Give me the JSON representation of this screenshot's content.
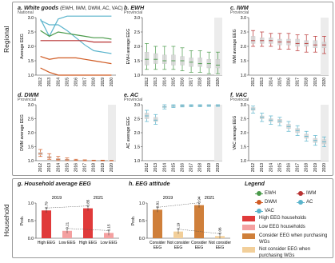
{
  "section_labels": {
    "regional": "Regional",
    "household": "Household"
  },
  "colors": {
    "EWH": "#4a9a4a",
    "IWM": "#b83232",
    "DWM": "#d05a22",
    "VAC": "#5ab4cc",
    "AC": "#5ab4cc",
    "high_eeg": "#e03a3a",
    "low_eeg": "#f4a0a0",
    "consider": "#cf7f3a",
    "not_consider": "#f2cf9a"
  },
  "legend": {
    "title": "Legend",
    "appliances": [
      {
        "name": "EWH",
        "color": "#4a9a4a"
      },
      {
        "name": "IWM",
        "color": "#b83232"
      },
      {
        "name": "DWM",
        "color": "#d05a22"
      },
      {
        "name": "AC",
        "color": "#5ab4cc"
      },
      {
        "name": "VAC",
        "color": "#5ab4cc"
      }
    ],
    "bars": [
      {
        "label": "High EEG households",
        "color": "#e03a3a"
      },
      {
        "label": "Low EEG households",
        "color": "#f4a0a0"
      },
      {
        "label": "Consider EEG when purchasing WGs",
        "color": "#cf7f3a"
      },
      {
        "label": "Not consider EEG when purchasing WGs",
        "color": "#f2cf9a"
      }
    ]
  },
  "chart_data": [
    {
      "id": "a",
      "type": "line",
      "title_letter": "a.",
      "title": "White goods",
      "title_sub": "(EWH, IWM, DWM, AC, VAC)",
      "scope": "National",
      "ylabel": "Average EEG",
      "ylim": [
        1.0,
        3.0
      ],
      "yticks": [
        "1.0",
        "1.5",
        "2.0",
        "2.5",
        "3.0"
      ],
      "x": [
        "2012",
        "2013",
        "2014",
        "2015",
        "2016",
        "2017",
        "2018",
        "2019",
        "2020"
      ],
      "series": [
        {
          "key": "VAC",
          "values": [
            2.95,
            2.35,
            2.95,
            3.05,
            3.05,
            3.05,
            3.05,
            3.05,
            3.05
          ]
        },
        {
          "key": "AC",
          "values": [
            2.9,
            2.75,
            2.75,
            2.55,
            2.3,
            2.05,
            1.85,
            1.8,
            1.75
          ]
        },
        {
          "key": "EWH",
          "values": [
            2.55,
            2.35,
            2.5,
            2.45,
            2.4,
            2.35,
            2.3,
            2.3,
            2.25
          ]
        },
        {
          "key": "IWM",
          "values": [
            2.2,
            2.2,
            2.2,
            2.2,
            2.2,
            2.2,
            2.15,
            2.15,
            2.15
          ]
        },
        {
          "key": "DWM",
          "values": [
            1.65,
            1.55,
            1.6,
            1.6,
            1.6,
            1.55,
            1.5,
            1.45,
            1.4
          ]
        },
        {
          "key": "DWM2",
          "color": "#d05a22",
          "values": [
            1.25,
            1.1,
            1.0,
            1.0,
            1.0,
            1.0,
            1.0,
            1.0,
            1.0
          ]
        }
      ]
    },
    {
      "id": "b",
      "type": "box",
      "title_letter": "b.",
      "title": "EWH",
      "scope": "Provincial",
      "ylabel": "EWH average EEG",
      "ylim": [
        1.0,
        3.0
      ],
      "yticks": [
        "1.0",
        "1.5",
        "2.0",
        "2.5",
        "3.0"
      ],
      "x": [
        "2012",
        "2013",
        "2014",
        "2015",
        "2016",
        "2017",
        "2018",
        "2019",
        "2020"
      ],
      "color": "#4a9a4a",
      "boxes": [
        {
          "min": 1.2,
          "q1": 1.35,
          "median": 1.55,
          "q3": 1.8,
          "max": 2.1
        },
        {
          "min": 1.2,
          "q1": 1.4,
          "median": 1.55,
          "q3": 1.75,
          "max": 2.0
        },
        {
          "min": 1.2,
          "q1": 1.4,
          "median": 1.5,
          "q3": 1.7,
          "max": 2.0
        },
        {
          "min": 1.2,
          "q1": 1.35,
          "median": 1.5,
          "q3": 1.7,
          "max": 2.0
        },
        {
          "min": 1.15,
          "q1": 1.35,
          "median": 1.5,
          "q3": 1.65,
          "max": 1.95
        },
        {
          "min": 1.1,
          "q1": 1.3,
          "median": 1.45,
          "q3": 1.6,
          "max": 1.85
        },
        {
          "min": 1.1,
          "q1": 1.3,
          "median": 1.4,
          "q3": 1.6,
          "max": 1.85
        },
        {
          "min": 1.05,
          "q1": 1.25,
          "median": 1.4,
          "q3": 1.55,
          "max": 1.8
        },
        {
          "min": 1.05,
          "q1": 1.25,
          "median": 1.35,
          "q3": 1.55,
          "max": 1.8
        }
      ]
    },
    {
      "id": "c",
      "type": "box",
      "title_letter": "c.",
      "title": "IWM",
      "scope": "Provincial",
      "ylabel": "IWM average EEG",
      "ylim": [
        1.0,
        3.0
      ],
      "yticks": [
        "1.0",
        "1.5",
        "2.0",
        "2.5",
        "3.0"
      ],
      "x": [
        "2012",
        "2013",
        "2014",
        "2015",
        "2016",
        "2017",
        "2018",
        "2019",
        "2020"
      ],
      "color": "#b83232",
      "boxes": [
        {
          "min": 2.0,
          "q1": 2.1,
          "median": 2.2,
          "q3": 2.35,
          "max": 2.55
        },
        {
          "min": 2.0,
          "q1": 2.1,
          "median": 2.2,
          "q3": 2.3,
          "max": 2.5
        },
        {
          "min": 2.0,
          "q1": 2.1,
          "median": 2.2,
          "q3": 2.3,
          "max": 2.45
        },
        {
          "min": 1.9,
          "q1": 2.05,
          "median": 2.15,
          "q3": 2.25,
          "max": 2.45
        },
        {
          "min": 1.9,
          "q1": 2.05,
          "median": 2.15,
          "q3": 2.25,
          "max": 2.45
        },
        {
          "min": 1.85,
          "q1": 2.0,
          "median": 2.1,
          "q3": 2.25,
          "max": 2.4
        },
        {
          "min": 1.8,
          "q1": 2.0,
          "median": 2.1,
          "q3": 2.2,
          "max": 2.4
        },
        {
          "min": 1.8,
          "q1": 1.95,
          "median": 2.05,
          "q3": 2.2,
          "max": 2.35
        },
        {
          "min": 1.75,
          "q1": 1.95,
          "median": 2.05,
          "q3": 2.15,
          "max": 2.35
        }
      ]
    },
    {
      "id": "d",
      "type": "box",
      "title_letter": "d.",
      "title": "DWM",
      "scope": "Provincial",
      "ylabel": "DWM average EEG",
      "ylim": [
        1.0,
        3.0
      ],
      "yticks": [
        "1.0",
        "1.5",
        "2.0",
        "2.5",
        "3.0"
      ],
      "x": [
        "2012",
        "2013",
        "2014",
        "2015",
        "2016",
        "2017",
        "2018",
        "2019",
        "2020"
      ],
      "color": "#d05a22",
      "boxes": [
        {
          "min": 1.15,
          "q1": 1.2,
          "median": 1.25,
          "q3": 1.3,
          "max": 1.4
        },
        {
          "min": 1.05,
          "q1": 1.1,
          "median": 1.12,
          "q3": 1.15,
          "max": 1.25
        },
        {
          "min": 1.0,
          "q1": 1.02,
          "median": 1.05,
          "q3": 1.08,
          "max": 1.15
        },
        {
          "min": 1.0,
          "q1": 1.01,
          "median": 1.03,
          "q3": 1.05,
          "max": 1.1
        },
        {
          "min": 1.0,
          "q1": 1.0,
          "median": 1.01,
          "q3": 1.02,
          "max": 1.05
        },
        {
          "min": 1.0,
          "q1": 1.0,
          "median": 1.0,
          "q3": 1.01,
          "max": 1.03
        },
        {
          "min": 1.0,
          "q1": 1.0,
          "median": 1.0,
          "q3": 1.01,
          "max": 1.02
        },
        {
          "min": 1.0,
          "q1": 1.0,
          "median": 1.0,
          "q3": 1.0,
          "max": 1.02
        },
        {
          "min": 1.0,
          "q1": 1.0,
          "median": 1.0,
          "q3": 1.0,
          "max": 1.01
        }
      ]
    },
    {
      "id": "e",
      "type": "box",
      "title_letter": "e.",
      "title": "AC",
      "scope": "Provincial",
      "ylabel": "AC average EEG",
      "ylim": [
        1.0,
        3.0
      ],
      "yticks": [
        "1.0",
        "1.5",
        "2.0",
        "2.5",
        "3.0"
      ],
      "x": [
        "2012",
        "2013",
        "2014",
        "2015",
        "2016",
        "2017",
        "2018",
        "2019",
        "2020"
      ],
      "color": "#5ab4cc",
      "boxes": [
        {
          "min": 2.4,
          "q1": 2.5,
          "median": 2.6,
          "q3": 2.7,
          "max": 2.8
        },
        {
          "min": 2.3,
          "q1": 2.4,
          "median": 2.45,
          "q3": 2.55,
          "max": 2.65
        },
        {
          "min": 2.85,
          "q1": 2.9,
          "median": 2.92,
          "q3": 2.95,
          "max": 3.0
        },
        {
          "min": 2.9,
          "q1": 2.93,
          "median": 2.95,
          "q3": 2.97,
          "max": 3.0
        },
        {
          "min": 2.92,
          "q1": 2.94,
          "median": 2.96,
          "q3": 2.98,
          "max": 3.0
        },
        {
          "min": 2.93,
          "q1": 2.95,
          "median": 2.97,
          "q3": 2.98,
          "max": 3.0
        },
        {
          "min": 2.93,
          "q1": 2.95,
          "median": 2.97,
          "q3": 2.98,
          "max": 3.0
        },
        {
          "min": 2.94,
          "q1": 2.96,
          "median": 2.97,
          "q3": 2.99,
          "max": 3.0
        },
        {
          "min": 2.94,
          "q1": 2.96,
          "median": 2.98,
          "q3": 2.99,
          "max": 3.0
        }
      ]
    },
    {
      "id": "f",
      "type": "box",
      "title_letter": "f.",
      "title": "VAC",
      "scope": "Provincial",
      "ylabel": "VAC average EEG",
      "ylim": [
        1.0,
        3.0
      ],
      "yticks": [
        "1.0",
        "1.5",
        "2.0",
        "2.5",
        "3.0"
      ],
      "x": [
        "2012",
        "2013",
        "2014",
        "2015",
        "2016",
        "2017",
        "2018",
        "2019",
        "2020"
      ],
      "color": "#5ab4cc",
      "boxes": [
        {
          "min": 2.7,
          "q1": 2.8,
          "median": 2.85,
          "q3": 2.9,
          "max": 2.95
        },
        {
          "min": 2.4,
          "q1": 2.5,
          "median": 2.55,
          "q3": 2.6,
          "max": 2.7
        },
        {
          "min": 2.3,
          "q1": 2.4,
          "median": 2.45,
          "q3": 2.5,
          "max": 2.6
        },
        {
          "min": 2.25,
          "q1": 2.35,
          "median": 2.42,
          "q3": 2.48,
          "max": 2.55
        },
        {
          "min": 2.05,
          "q1": 2.15,
          "median": 2.22,
          "q3": 2.3,
          "max": 2.4
        },
        {
          "min": 1.9,
          "q1": 2.0,
          "median": 2.08,
          "q3": 2.15,
          "max": 2.25
        },
        {
          "min": 1.7,
          "q1": 1.8,
          "median": 1.87,
          "q3": 1.95,
          "max": 2.05
        },
        {
          "min": 1.55,
          "q1": 1.65,
          "median": 1.72,
          "q3": 1.8,
          "max": 1.9
        },
        {
          "min": 1.5,
          "q1": 1.6,
          "median": 1.67,
          "q3": 1.75,
          "max": 1.85
        }
      ]
    },
    {
      "id": "g",
      "type": "bar",
      "title_letter": "g.",
      "title": "Household average EEG",
      "ylabel": "Prob.",
      "ylim": [
        0,
        1.0
      ],
      "yticks": [
        "0.0",
        "0.5",
        "1.0"
      ],
      "groups": [
        "2019",
        "2021"
      ],
      "categories": [
        "High EEG",
        "Low EEG",
        "High EEG",
        "Low EEG"
      ],
      "values": [
        0.79,
        0.21,
        0.85,
        0.15
      ],
      "data_labels": [
        "0.79",
        "0.21",
        "0.85",
        "0.15"
      ],
      "bar_colors": [
        "#e03a3a",
        "#f4a0a0",
        "#e03a3a",
        "#f4a0a0"
      ]
    },
    {
      "id": "h",
      "type": "bar",
      "title_letter": "h.",
      "title": "EEG attitude",
      "ylabel": "Prob.",
      "ylim": [
        0,
        1.0
      ],
      "yticks": [
        "0.0",
        "0.5",
        "1.0"
      ],
      "groups": [
        "2019",
        "2021"
      ],
      "categories": [
        "Consider EEG",
        "Not consider EEG",
        "Consider EEG",
        "Not consider EEG"
      ],
      "values": [
        0.81,
        0.19,
        0.94,
        0.06
      ],
      "data_labels": [
        "0.81",
        "0.19",
        "0.94",
        "0.06"
      ],
      "bar_colors": [
        "#cf7f3a",
        "#f2cf9a",
        "#cf7f3a",
        "#f2cf9a"
      ]
    }
  ]
}
